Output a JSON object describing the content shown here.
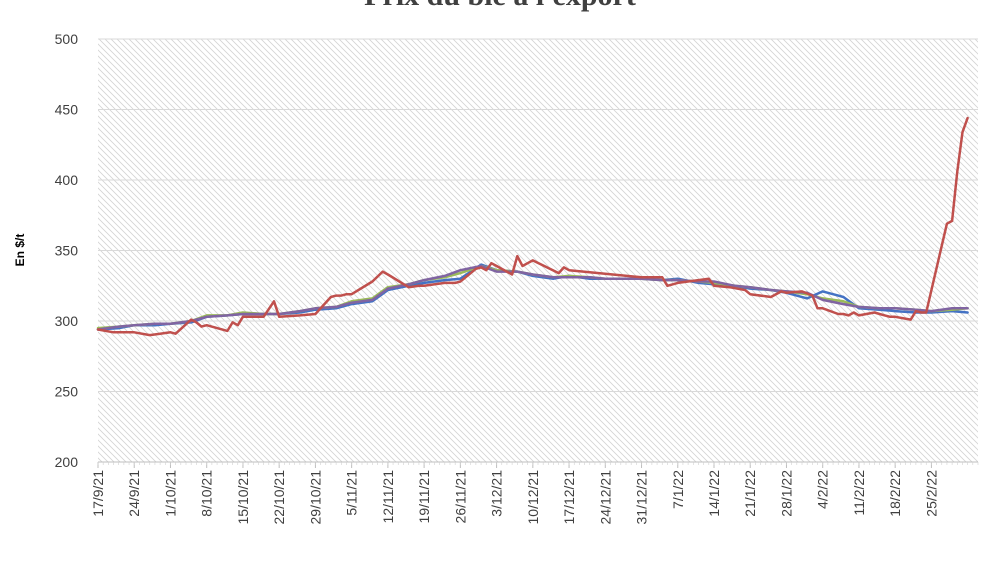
{
  "chart_data": {
    "type": "line",
    "title": "Prix du blé à l'export",
    "xlabel": "",
    "ylabel": "En $/t",
    "ylim": [
      200,
      500
    ],
    "yticks": [
      200,
      250,
      300,
      350,
      400,
      450,
      500
    ],
    "xlim": [
      "2021-09-17",
      "2022-03-06"
    ],
    "xticks": [
      "17/9/21",
      "24/9/21",
      "1/10/21",
      "8/10/21",
      "15/10/21",
      "22/10/21",
      "29/10/21",
      "5/11/21",
      "12/11/21",
      "19/11/21",
      "26/11/21",
      "3/12/21",
      "10/12/21",
      "17/12/21",
      "24/12/21",
      "31/12/21",
      "7/1/22",
      "14/1/22",
      "21/1/22",
      "28/1/22",
      "4/2/22",
      "11/2/22",
      "18/2/22",
      "25/2/22"
    ],
    "grid": true,
    "legend": "none",
    "series": [
      {
        "color": "#4472c4",
        "x": [
          "2021-09-17",
          "2021-09-21",
          "2021-09-24",
          "2021-09-28",
          "2021-10-01",
          "2021-10-05",
          "2021-10-08",
          "2021-10-12",
          "2021-10-15",
          "2021-10-19",
          "2021-10-22",
          "2021-10-26",
          "2021-10-29",
          "2021-11-02",
          "2021-11-05",
          "2021-11-09",
          "2021-11-12",
          "2021-11-16",
          "2021-11-19",
          "2021-11-23",
          "2021-11-26",
          "2021-11-30",
          "2021-12-03",
          "2021-12-07",
          "2021-12-10",
          "2021-12-14",
          "2021-12-17",
          "2021-12-21",
          "2021-12-24",
          "2021-12-28",
          "2021-12-31",
          "2022-01-04",
          "2022-01-07",
          "2022-01-11",
          "2022-01-14",
          "2022-01-18",
          "2022-01-21",
          "2022-01-25",
          "2022-01-28",
          "2022-02-01",
          "2022-02-04",
          "2022-02-07",
          "2022-02-08",
          "2022-02-11",
          "2022-02-15",
          "2022-02-18",
          "2022-02-22",
          "2022-02-25",
          "2022-03-01",
          "2022-03-04"
        ],
        "y": [
          294,
          295,
          297,
          297,
          298,
          299,
          303,
          304,
          305,
          305,
          305,
          306,
          308,
          309,
          312,
          314,
          322,
          325,
          327,
          329,
          330,
          340,
          336,
          335,
          332,
          330,
          332,
          330,
          330,
          330,
          330,
          329,
          330,
          327,
          326,
          325,
          323,
          322,
          320,
          316,
          321,
          318,
          317,
          309,
          308,
          307,
          306,
          306,
          307,
          306
        ]
      },
      {
        "color": "#9bbb59",
        "x": [
          "2021-09-17",
          "2021-09-21",
          "2021-09-24",
          "2021-09-28",
          "2021-10-01",
          "2021-10-05",
          "2021-10-08",
          "2021-10-12",
          "2021-10-15",
          "2021-10-19",
          "2021-10-22",
          "2021-10-26",
          "2021-10-29",
          "2021-11-02",
          "2021-11-05",
          "2021-11-09",
          "2021-11-12",
          "2021-11-16",
          "2021-11-19",
          "2021-11-23",
          "2021-11-26",
          "2021-11-30",
          "2021-12-03",
          "2021-12-07",
          "2021-12-10",
          "2021-12-14",
          "2021-12-17",
          "2021-12-21",
          "2021-12-24",
          "2021-12-28",
          "2021-12-31",
          "2022-01-04",
          "2022-01-07",
          "2022-01-11",
          "2022-01-14",
          "2022-01-18",
          "2022-01-21",
          "2022-01-25",
          "2022-01-28",
          "2022-02-01",
          "2022-02-04",
          "2022-02-08",
          "2022-02-11",
          "2022-02-15",
          "2022-02-18",
          "2022-02-22",
          "2022-02-25",
          "2022-03-01",
          "2022-03-04"
        ],
        "y": [
          295,
          296,
          297,
          298,
          298,
          300,
          304,
          304,
          306,
          305,
          305,
          307,
          309,
          310,
          314,
          316,
          324,
          326,
          329,
          331,
          334,
          339,
          336,
          335,
          333,
          331,
          332,
          331,
          330,
          330,
          330,
          329,
          329,
          328,
          327,
          325,
          324,
          322,
          321,
          319,
          316,
          314,
          310,
          309,
          309,
          308,
          307,
          308,
          309
        ]
      },
      {
        "color": "#8064a2",
        "x": [
          "2021-09-17",
          "2021-09-21",
          "2021-09-24",
          "2021-09-28",
          "2021-10-01",
          "2021-10-05",
          "2021-10-08",
          "2021-10-12",
          "2021-10-15",
          "2021-10-19",
          "2021-10-22",
          "2021-10-26",
          "2021-10-29",
          "2021-11-02",
          "2021-11-05",
          "2021-11-09",
          "2021-11-12",
          "2021-11-16",
          "2021-11-19",
          "2021-11-23",
          "2021-11-26",
          "2021-11-30",
          "2021-12-03",
          "2021-12-07",
          "2021-12-10",
          "2021-12-14",
          "2021-12-17",
          "2021-12-21",
          "2021-12-24",
          "2021-12-28",
          "2021-12-31",
          "2022-01-04",
          "2022-01-07",
          "2022-01-11",
          "2022-01-14",
          "2022-01-18",
          "2022-01-21",
          "2022-01-25",
          "2022-01-28",
          "2022-02-01",
          "2022-02-04",
          "2022-02-08",
          "2022-02-11",
          "2022-02-15",
          "2022-02-18",
          "2022-02-22",
          "2022-02-25",
          "2022-03-01",
          "2022-03-04"
        ],
        "y": [
          294,
          296,
          297,
          298,
          298,
          300,
          303,
          304,
          305,
          305,
          305,
          307,
          309,
          310,
          313,
          315,
          323,
          326,
          329,
          332,
          336,
          339,
          335,
          335,
          333,
          331,
          331,
          331,
          330,
          330,
          330,
          329,
          329,
          328,
          328,
          325,
          324,
          322,
          321,
          320,
          315,
          312,
          310,
          309,
          309,
          308,
          307,
          309,
          309
        ]
      },
      {
        "color": "#c0504d",
        "x": [
          "2021-09-17",
          "2021-09-20",
          "2021-09-22",
          "2021-09-24",
          "2021-09-27",
          "2021-09-29",
          "2021-10-01",
          "2021-10-02",
          "2021-10-05",
          "2021-10-06",
          "2021-10-07",
          "2021-10-08",
          "2021-10-12",
          "2021-10-13",
          "2021-10-14",
          "2021-10-15",
          "2021-10-19",
          "2021-10-21",
          "2021-10-22",
          "2021-10-26",
          "2021-10-29",
          "2021-11-01",
          "2021-11-02",
          "2021-11-03",
          "2021-11-04",
          "2021-11-05",
          "2021-11-09",
          "2021-11-11",
          "2021-11-12",
          "2021-11-16",
          "2021-11-18",
          "2021-11-19",
          "2021-11-23",
          "2021-11-25",
          "2021-11-26",
          "2021-11-29",
          "2021-11-30",
          "2021-12-01",
          "2021-12-02",
          "2021-12-03",
          "2021-12-06",
          "2021-12-07",
          "2021-12-08",
          "2021-12-09",
          "2021-12-10",
          "2021-12-15",
          "2021-12-16",
          "2021-12-17",
          "2021-12-31",
          "2022-01-03",
          "2022-01-04",
          "2022-01-05",
          "2022-01-07",
          "2022-01-11",
          "2022-01-13",
          "2022-01-14",
          "2022-01-17",
          "2022-01-20",
          "2022-01-21",
          "2022-01-25",
          "2022-01-27",
          "2022-01-28",
          "2022-01-31",
          "2022-02-02",
          "2022-02-03",
          "2022-02-04",
          "2022-02-07",
          "2022-02-08",
          "2022-02-09",
          "2022-02-10",
          "2022-02-11",
          "2022-02-14",
          "2022-02-15",
          "2022-02-16",
          "2022-02-17",
          "2022-02-18",
          "2022-02-21",
          "2022-02-22",
          "2022-02-23",
          "2022-02-24",
          "2022-02-28",
          "2022-03-01",
          "2022-03-02",
          "2022-03-03",
          "2022-03-04"
        ],
        "y": [
          294,
          292,
          292,
          292,
          290,
          291,
          292,
          291,
          301,
          299,
          296,
          297,
          293,
          299,
          297,
          303,
          303,
          314,
          303,
          304,
          305,
          317,
          318,
          318,
          319,
          319,
          328,
          335,
          333,
          324,
          325,
          325,
          327,
          327,
          328,
          337,
          338,
          336,
          341,
          339,
          333,
          346,
          339,
          341,
          343,
          334,
          338,
          336,
          331,
          331,
          331,
          325,
          327,
          329,
          330,
          325,
          324,
          322,
          319,
          317,
          321,
          320,
          321,
          318,
          309,
          309,
          305,
          305,
          304,
          306,
          304,
          306,
          305,
          304,
          303,
          303,
          301,
          307,
          306,
          306,
          369,
          371,
          406,
          434,
          444
        ]
      }
    ]
  }
}
